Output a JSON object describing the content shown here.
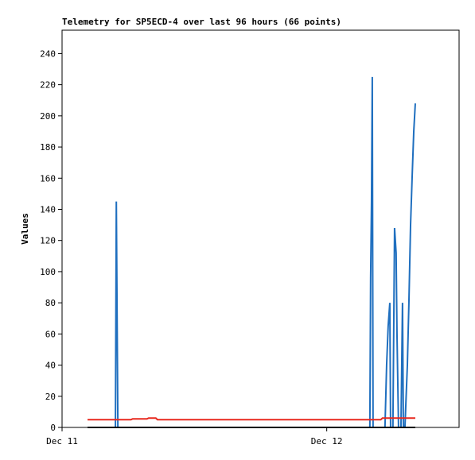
{
  "chart_data": {
    "type": "line",
    "title": "Telemetry for SP5ECD-4 over last 96 hours (66 points)",
    "y_label": "Values",
    "xlim": [
      0,
      36
    ],
    "xticks": [
      {
        "value": 0,
        "label": "Dec 11"
      },
      {
        "value": 24,
        "label": "Dec 12"
      }
    ],
    "ylim": [
      0,
      255
    ],
    "yticks": [
      0,
      20,
      40,
      60,
      80,
      100,
      120,
      140,
      160,
      180,
      200,
      220,
      240
    ],
    "series": [
      {
        "color": "#1f6fbf",
        "x": [
          2.31,
          4.84,
          4.92,
          4.99,
          5.06,
          27.91,
          27.98,
          28.06,
          28.13,
          28.2,
          29.28,
          29.43,
          29.57,
          29.72,
          29.79,
          30.0,
          30.15,
          30.29,
          30.37,
          30.51,
          30.73,
          30.87,
          30.95,
          31.09,
          31.31,
          31.45,
          31.6,
          31.74,
          31.89,
          32.03
        ],
        "values": [
          0,
          0,
          145,
          72,
          0,
          0,
          96,
          145,
          225,
          0,
          0,
          40,
          65,
          80,
          0,
          0,
          128,
          112,
          60,
          0,
          0,
          80,
          0,
          0,
          40,
          80,
          130,
          160,
          190,
          208
        ]
      },
      {
        "color": "#e8281e",
        "x": [
          2.31,
          6.25,
          6.4,
          7.7,
          7.85,
          8.5,
          8.65,
          28.9,
          29.05,
          32.03
        ],
        "values": [
          5,
          5,
          5.5,
          5.5,
          6,
          6,
          5,
          5,
          6,
          6
        ]
      },
      {
        "color": "#000000",
        "x": [
          2.31,
          32.03
        ],
        "values": [
          0,
          0
        ]
      }
    ]
  }
}
